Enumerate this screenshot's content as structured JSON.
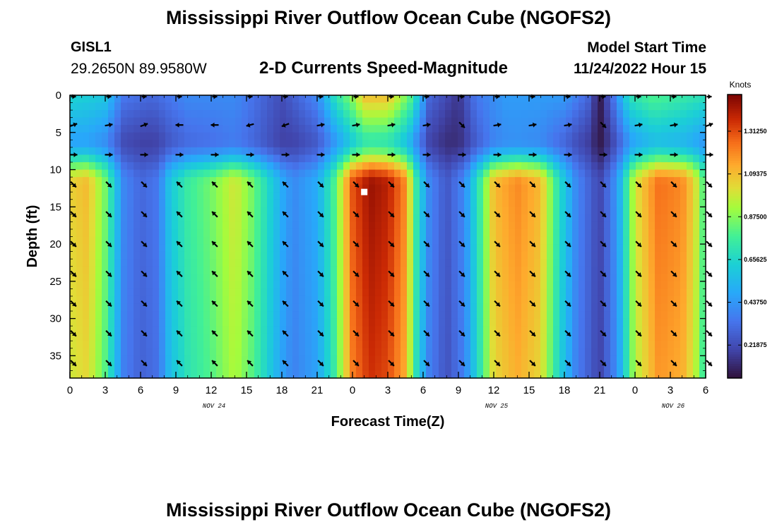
{
  "header": {
    "title": "Mississippi River Outflow Ocean Cube (NGOFS2)",
    "station_id": "GISL1",
    "station_coords": "29.2650N  89.9580W",
    "subtitle": "2-D Currents Speed-Magnitude",
    "model_start_label": "Model Start Time",
    "model_start_value": "11/24/2022 Hour 15"
  },
  "footer": {
    "title": "Mississippi River Outflow Ocean Cube (NGOFS2)"
  },
  "chart_data": {
    "type": "heatmap",
    "title": "2-D Currents Speed-Magnitude",
    "xlabel": "Forecast Time(Z)",
    "ylabel": "Depth (ft)",
    "x_range_hours": [
      0,
      54
    ],
    "y_range_ft": [
      0,
      38
    ],
    "x_tick_labels": [
      "0",
      "3",
      "6",
      "9",
      "12",
      "15",
      "18",
      "21",
      "0",
      "3",
      "6",
      "9",
      "12",
      "15",
      "18",
      "21",
      "0",
      "3",
      "6"
    ],
    "y_ticks": [
      0,
      5,
      10,
      15,
      20,
      25,
      30,
      35
    ],
    "date_labels": [
      {
        "text": "NOV 24",
        "hour": 12
      },
      {
        "text": "NOV 25",
        "hour": 36
      },
      {
        "text": "NOV 26",
        "hour": 51
      }
    ],
    "colorbar": {
      "unit": "Knots",
      "range": [
        0.05,
        1.5
      ],
      "ticks": [
        0.21875,
        0.4375,
        0.65625,
        0.875,
        1.09375,
        1.3125
      ],
      "tick_labels": [
        "0.21875",
        "0.43750",
        "0.65625",
        "0.87500",
        "1.09375",
        "1.31250"
      ]
    },
    "surface_speed_knots": [
      {
        "hour": 0,
        "v": 0.65
      },
      {
        "hour": 3,
        "v": 0.6
      },
      {
        "hour": 4.5,
        "v": 0.35
      },
      {
        "hour": 7,
        "v": 0.3
      },
      {
        "hour": 10,
        "v": 0.4
      },
      {
        "hour": 14,
        "v": 0.4
      },
      {
        "hour": 18,
        "v": 0.22
      },
      {
        "hour": 21,
        "v": 0.4
      },
      {
        "hour": 22.5,
        "v": 0.7
      },
      {
        "hour": 24,
        "v": 0.9
      },
      {
        "hour": 25,
        "v": 1.1
      },
      {
        "hour": 27,
        "v": 1.1
      },
      {
        "hour": 29,
        "v": 0.8
      },
      {
        "hour": 30.5,
        "v": 0.3
      },
      {
        "hour": 33,
        "v": 0.15
      },
      {
        "hour": 34.5,
        "v": 0.35
      },
      {
        "hour": 37,
        "v": 0.45
      },
      {
        "hour": 42,
        "v": 0.45
      },
      {
        "hour": 44,
        "v": 0.3
      },
      {
        "hour": 45,
        "v": 0.07
      },
      {
        "hour": 46,
        "v": 0.3
      },
      {
        "hour": 47.5,
        "v": 0.7
      },
      {
        "hour": 49.5,
        "v": 0.8
      },
      {
        "hour": 54,
        "v": 0.7
      }
    ],
    "deep_speed_knots": [
      {
        "hour": 0,
        "v": 1.05
      },
      {
        "hour": 1.5,
        "v": 1.1
      },
      {
        "hour": 3,
        "v": 0.85
      },
      {
        "hour": 4.5,
        "v": 0.4
      },
      {
        "hour": 6,
        "v": 0.3
      },
      {
        "hour": 7.5,
        "v": 0.35
      },
      {
        "hour": 8.5,
        "v": 0.6
      },
      {
        "hour": 10,
        "v": 0.75
      },
      {
        "hour": 12,
        "v": 0.85
      },
      {
        "hour": 14,
        "v": 1.0
      },
      {
        "hour": 15.5,
        "v": 0.85
      },
      {
        "hour": 18,
        "v": 0.5
      },
      {
        "hour": 19,
        "v": 0.4
      },
      {
        "hour": 21,
        "v": 0.5
      },
      {
        "hour": 22.5,
        "v": 0.8
      },
      {
        "hour": 24,
        "v": 1.3
      },
      {
        "hour": 25.5,
        "v": 1.45
      },
      {
        "hour": 27,
        "v": 1.4
      },
      {
        "hour": 28.5,
        "v": 1.2
      },
      {
        "hour": 29.5,
        "v": 0.7
      },
      {
        "hour": 30.5,
        "v": 0.4
      },
      {
        "hour": 32,
        "v": 0.25
      },
      {
        "hour": 33.5,
        "v": 0.4
      },
      {
        "hour": 35,
        "v": 0.8
      },
      {
        "hour": 36,
        "v": 1.1
      },
      {
        "hour": 38,
        "v": 1.2
      },
      {
        "hour": 40,
        "v": 1.1
      },
      {
        "hour": 41.5,
        "v": 0.7
      },
      {
        "hour": 43,
        "v": 0.4
      },
      {
        "hour": 45,
        "v": 0.2
      },
      {
        "hour": 46.5,
        "v": 0.45
      },
      {
        "hour": 48,
        "v": 1.0
      },
      {
        "hour": 50,
        "v": 1.25
      },
      {
        "hour": 52,
        "v": 1.2
      },
      {
        "hour": 53,
        "v": 1.05
      },
      {
        "hour": 54,
        "v": 0.75
      }
    ],
    "vector_depths_ft": [
      0,
      4,
      8,
      12,
      16,
      20,
      24,
      28,
      32,
      36
    ],
    "vector_hours": [
      0,
      3,
      6,
      9,
      12,
      15,
      18,
      21,
      24,
      27,
      30,
      33,
      36,
      39,
      42,
      45,
      48,
      51,
      54
    ],
    "vector_direction_deg": {
      "surface": [
        90,
        90,
        90,
        90,
        90,
        90,
        90,
        90,
        90,
        90,
        90,
        90,
        90,
        90,
        90,
        90,
        90,
        90,
        90
      ],
      "upper": [
        70,
        80,
        70,
        270,
        270,
        255,
        250,
        80,
        80,
        80,
        80,
        135,
        80,
        80,
        80,
        135,
        80,
        80,
        70
      ],
      "mid": [
        90,
        90,
        90,
        90,
        90,
        90,
        90,
        90,
        90,
        90,
        90,
        90,
        90,
        90,
        90,
        90,
        90,
        90,
        90
      ],
      "deep": [
        135,
        135,
        135,
        315,
        315,
        315,
        315,
        135,
        135,
        135,
        135,
        135,
        135,
        135,
        135,
        135,
        135,
        135,
        135
      ]
    },
    "marker": {
      "hour": 25,
      "depth_ft": 13
    }
  }
}
